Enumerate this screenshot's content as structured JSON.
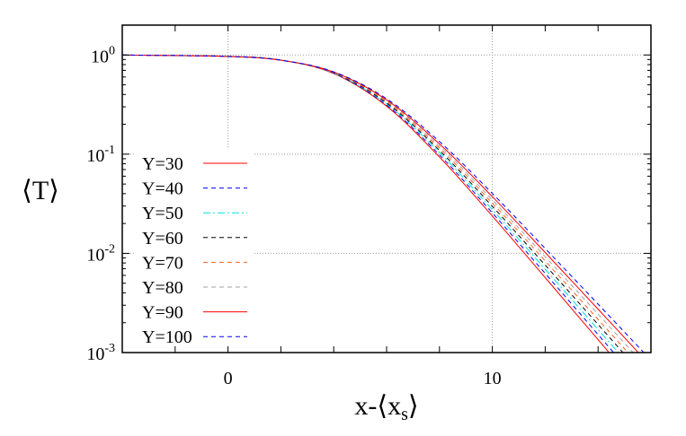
{
  "chart_data": {
    "type": "line",
    "title": "",
    "xlabel": "x-⟨x",
    "xlabel_sub": "s",
    "xlabel_end": "⟩",
    "ylabel": "⟨T⟩",
    "xlim": [
      -4,
      16
    ],
    "ylim": [
      0.001,
      2
    ],
    "yscale": "log",
    "grid": "on (dotted, at major ticks)",
    "legend_placement": "left",
    "x_ticks": [
      {
        "value": 0,
        "label": "0"
      },
      {
        "value": 10,
        "label": "10"
      }
    ],
    "y_ticks": [
      {
        "value": 1,
        "base": "10",
        "exp": "0"
      },
      {
        "value": 0.1,
        "base": "10",
        "exp": "-1"
      },
      {
        "value": 0.01,
        "base": "10",
        "exp": "-2"
      },
      {
        "value": 0.001,
        "base": "10",
        "exp": "-3"
      }
    ],
    "x": [
      -4,
      0,
      2,
      4,
      6,
      8,
      10,
      12,
      14,
      16
    ],
    "series": [
      {
        "name": "Y=30",
        "color": "#ff0000",
        "dash": "solid",
        "values": [
          0.999,
          0.971,
          0.888,
          0.65,
          0.305,
          0.0936,
          0.0238,
          0.00569,
          0.00135,
          0.000318
        ]
      },
      {
        "name": "Y=40",
        "color": "#0000ff",
        "dash": "dash",
        "values": [
          0.999,
          0.97,
          0.888,
          0.654,
          0.313,
          0.0984,
          0.0256,
          0.00628,
          0.00152,
          0.000365
        ]
      },
      {
        "name": "Y=50",
        "color": "#00e0e0",
        "dash": "dashdot",
        "values": [
          0.999,
          0.97,
          0.887,
          0.658,
          0.32,
          0.104,
          0.0276,
          0.00692,
          0.00171,
          0.000419
        ]
      },
      {
        "name": "Y=60",
        "color": "#000000",
        "dash": "dash",
        "values": [
          0.999,
          0.969,
          0.887,
          0.661,
          0.328,
          0.109,
          0.0298,
          0.00762,
          0.00192,
          0.000481
        ]
      },
      {
        "name": "Y=70",
        "color": "#ff6020",
        "dash": "dash",
        "values": [
          0.999,
          0.968,
          0.886,
          0.665,
          0.337,
          0.115,
          0.0321,
          0.0084,
          0.00216,
          0.000552
        ]
      },
      {
        "name": "Y=80",
        "color": "#a0a0a0",
        "dash": "dash",
        "values": [
          0.999,
          0.967,
          0.886,
          0.669,
          0.345,
          0.121,
          0.0346,
          0.00925,
          0.00244,
          0.000635
        ]
      },
      {
        "name": "Y=90",
        "color": "#ff0000",
        "dash": "solid",
        "values": [
          0.999,
          0.966,
          0.885,
          0.672,
          0.353,
          0.127,
          0.0373,
          0.0102,
          0.00274,
          0.000729
        ]
      },
      {
        "name": "Y=100",
        "color": "#0000ff",
        "dash": "dash",
        "values": [
          0.999,
          0.966,
          0.885,
          0.676,
          0.362,
          0.134,
          0.0402,
          0.0112,
          0.00308,
          0.000838
        ]
      }
    ]
  }
}
